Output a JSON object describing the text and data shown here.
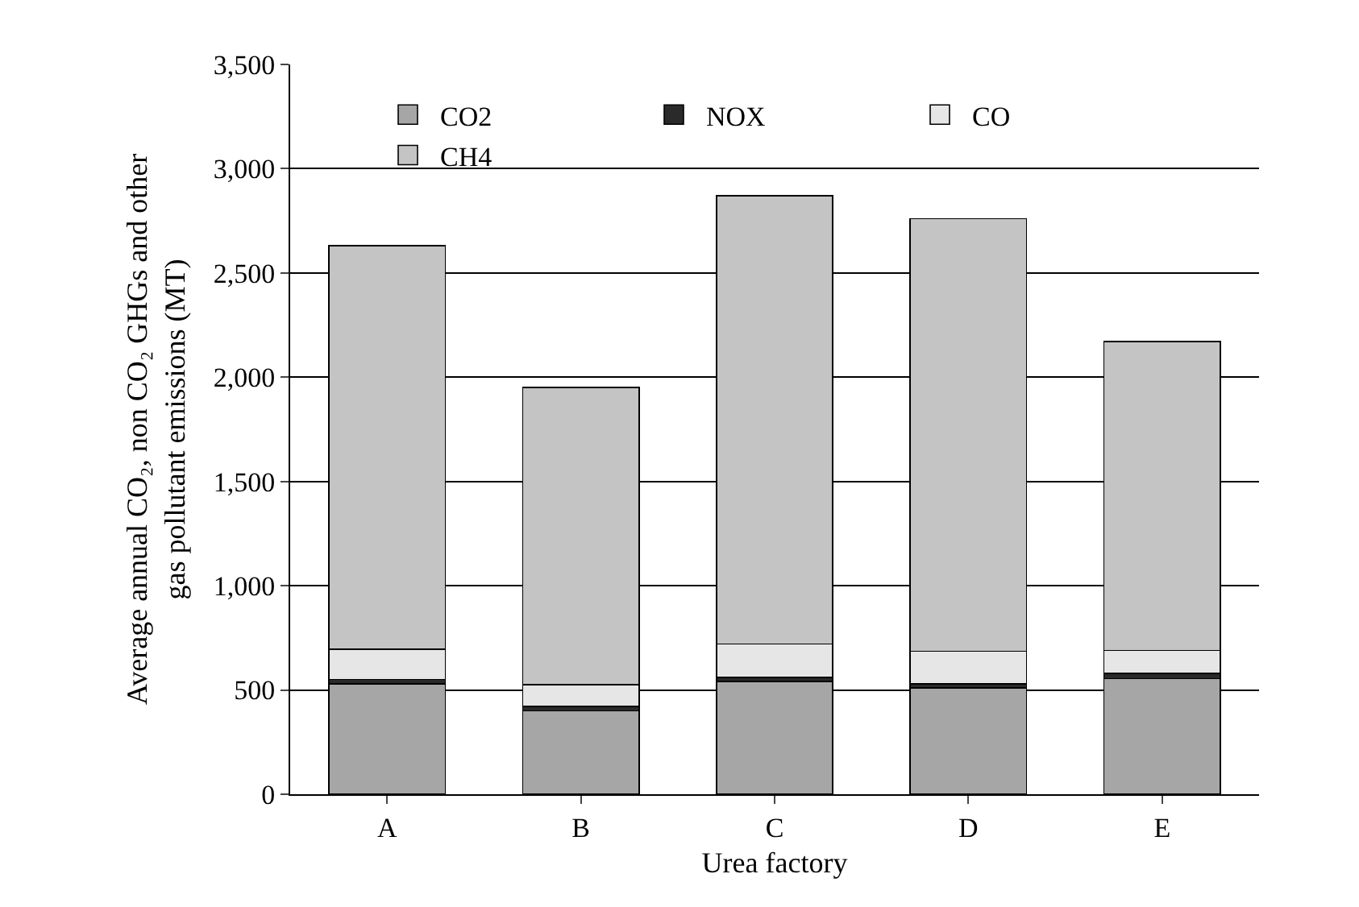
{
  "chart_data": {
    "type": "bar",
    "stacked": true,
    "xlabel": "Urea factory",
    "ylabel": "Average annual CO₂, non CO₂ GHGs and other gas pollutant emissions (MT)",
    "categories": [
      "A",
      "B",
      "C",
      "D",
      "E"
    ],
    "series": [
      {
        "name": "CO2",
        "color": "#a6a6a6",
        "values": [
          530,
          400,
          540,
          510,
          555
        ]
      },
      {
        "name": "NOX",
        "color": "#2a2a2a",
        "values": [
          20,
          20,
          20,
          20,
          25
        ]
      },
      {
        "name": "CO",
        "color": "#e6e6e6",
        "values": [
          145,
          105,
          160,
          155,
          110
        ]
      },
      {
        "name": "CH4",
        "color": "#c4c4c4",
        "values": [
          1935,
          1425,
          2150,
          2075,
          1480
        ]
      }
    ],
    "ylim": [
      0,
      3500
    ],
    "yticks": [
      0,
      {
        "value": 500,
        "label": "500"
      },
      {
        "value": 1000,
        "label": "1,000"
      },
      {
        "value": 1500,
        "label": "1,500"
      },
      {
        "value": 2000,
        "label": "2,000"
      },
      {
        "value": 2500,
        "label": "2,500"
      },
      {
        "value": 3000,
        "label": "3,000"
      },
      {
        "value": 3500,
        "label": "3,500"
      }
    ],
    "grid": "y",
    "legend": "top"
  }
}
